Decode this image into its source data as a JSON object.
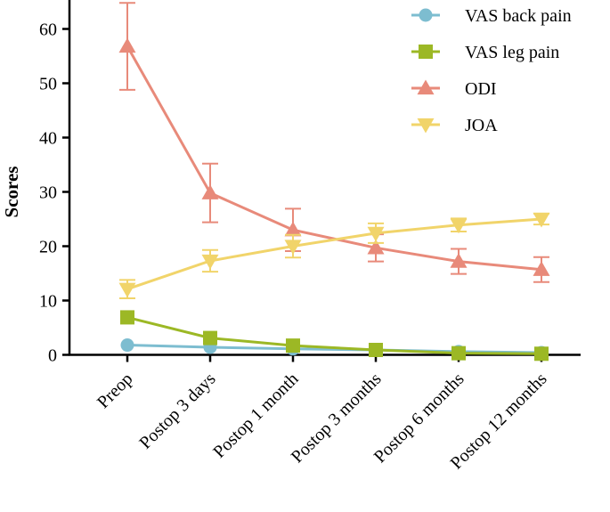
{
  "chart_data": {
    "type": "line",
    "title": "",
    "xlabel": "",
    "ylabel": "Scores",
    "ylim": [
      0,
      65
    ],
    "yticks": [
      0,
      10,
      20,
      30,
      40,
      50,
      60
    ],
    "categories": [
      "Preop",
      "Postop 3 days",
      "Postop 1 month",
      "Postop 3 months",
      "Postop 6 months",
      "Postop 12 months"
    ],
    "legend_position": "top-right",
    "series": [
      {
        "name": "VAS back pain",
        "marker": "circle",
        "color": "#7dbdd0",
        "values": [
          1.8,
          1.4,
          1.1,
          0.9,
          0.6,
          0.4
        ],
        "errors": [
          0,
          0,
          0,
          0,
          0,
          0
        ]
      },
      {
        "name": "VAS leg pain",
        "marker": "square",
        "color": "#9cb825",
        "values": [
          6.9,
          3.1,
          1.7,
          0.9,
          0.3,
          0.2
        ],
        "errors": [
          0,
          0,
          0,
          0,
          0,
          0
        ]
      },
      {
        "name": "ODI",
        "marker": "triangle-up",
        "color": "#e88a7a",
        "values": [
          56.8,
          29.8,
          23.0,
          19.7,
          17.2,
          15.7
        ],
        "errors": [
          8.0,
          5.4,
          3.9,
          2.5,
          2.3,
          2.3
        ]
      },
      {
        "name": "JOA",
        "marker": "triangle-down",
        "color": "#f1d46a",
        "values": [
          12.1,
          17.3,
          20.0,
          22.4,
          23.9,
          25.0
        ],
        "errors": [
          1.7,
          2.0,
          2.1,
          1.8,
          1.2,
          1.0
        ]
      }
    ]
  }
}
